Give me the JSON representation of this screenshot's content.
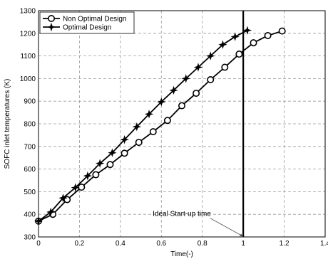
{
  "chart_data": {
    "type": "line",
    "xlabel": "Time(-)",
    "ylabel": "SOFC inlet temperatures (K)",
    "xlim": [
      0,
      1.4
    ],
    "ylim": [
      300,
      1300
    ],
    "x_ticks": [
      0,
      0.2,
      0.4,
      0.6,
      0.8,
      1,
      1.2,
      1.4
    ],
    "x_tick_labels": [
      "0",
      "0.2",
      "0.4",
      "0.6",
      "0.8",
      "1",
      "1.2",
      "1.4"
    ],
    "y_ticks": [
      300,
      400,
      500,
      600,
      700,
      800,
      900,
      1000,
      1100,
      1200,
      1300
    ],
    "y_tick_labels": [
      "300",
      "400",
      "500",
      "600",
      "700",
      "800",
      "900",
      "1000",
      "1100",
      "1200",
      "1300"
    ],
    "grid": true,
    "legend_position": "top-left",
    "series": [
      {
        "name": "Non Optimal Design",
        "marker": "circle",
        "color": "#000000",
        "x": [
          0,
          0.07,
          0.14,
          0.21,
          0.28,
          0.35,
          0.42,
          0.49,
          0.56,
          0.63,
          0.7,
          0.77,
          0.84,
          0.91,
          0.98,
          1.05,
          1.12,
          1.19
        ],
        "y": [
          370,
          400,
          465,
          520,
          575,
          620,
          670,
          718,
          765,
          815,
          880,
          935,
          995,
          1050,
          1108,
          1158,
          1190,
          1210
        ]
      },
      {
        "name": "Optimal Design",
        "marker": "star",
        "color": "#000000",
        "x": [
          0,
          0.06,
          0.12,
          0.18,
          0.24,
          0.3,
          0.36,
          0.42,
          0.48,
          0.54,
          0.6,
          0.66,
          0.72,
          0.78,
          0.84,
          0.9,
          0.96,
          1.02
        ],
        "y": [
          370,
          410,
          472,
          518,
          570,
          625,
          672,
          730,
          787,
          843,
          897,
          948,
          1000,
          1050,
          1100,
          1150,
          1185,
          1213
        ]
      }
    ],
    "vertical_line": {
      "x": 1.0
    },
    "annotations": [
      {
        "text": "Ideal Start-up time",
        "x": 0.7,
        "y": 392,
        "arrow_to": [
          1.0,
          302
        ]
      }
    ]
  }
}
